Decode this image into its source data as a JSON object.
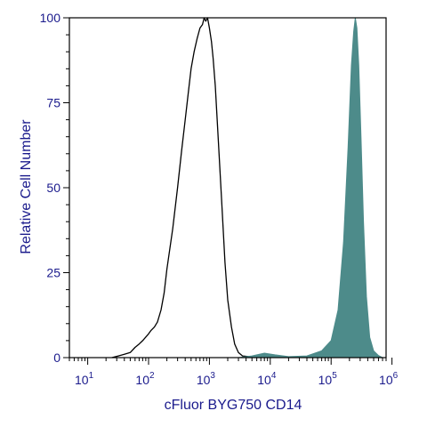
{
  "chart_data": {
    "type": "area",
    "xlabel": "cFluor BYG750 CD14",
    "ylabel": "Relative Cell Number",
    "x_scale": "log",
    "xlim": [
      5,
      800000
    ],
    "ylim": [
      0,
      100
    ],
    "x_ticks": [
      {
        "base": "10",
        "exp": "1",
        "value": 10
      },
      {
        "base": "10",
        "exp": "2",
        "value": 100
      },
      {
        "base": "10",
        "exp": "3",
        "value": 1000
      },
      {
        "base": "10",
        "exp": "4",
        "value": 10000
      },
      {
        "base": "10",
        "exp": "5",
        "value": 100000
      },
      {
        "base": "10",
        "exp": "6",
        "value": 1000000
      }
    ],
    "y_ticks": [
      0,
      25,
      50,
      75,
      100
    ],
    "grid": false,
    "legend": "none",
    "series": [
      {
        "style": "outline",
        "color": "#000000",
        "points": [
          [
            25,
            0
          ],
          [
            32,
            0.5
          ],
          [
            40,
            1
          ],
          [
            50,
            1.5
          ],
          [
            60,
            3
          ],
          [
            70,
            4
          ],
          [
            80,
            5
          ],
          [
            100,
            7
          ],
          [
            110,
            8
          ],
          [
            125,
            9
          ],
          [
            140,
            10.5
          ],
          [
            160,
            14
          ],
          [
            180,
            19
          ],
          [
            200,
            26
          ],
          [
            250,
            38
          ],
          [
            300,
            50
          ],
          [
            350,
            61
          ],
          [
            400,
            70
          ],
          [
            450,
            78
          ],
          [
            500,
            85
          ],
          [
            560,
            90
          ],
          [
            630,
            94
          ],
          [
            700,
            97
          ],
          [
            770,
            98
          ],
          [
            820,
            100
          ],
          [
            870,
            99
          ],
          [
            930,
            100
          ],
          [
            1000,
            97
          ],
          [
            1080,
            93
          ],
          [
            1150,
            88
          ],
          [
            1250,
            80
          ],
          [
            1400,
            64
          ],
          [
            1600,
            45
          ],
          [
            1800,
            28
          ],
          [
            2000,
            17
          ],
          [
            2300,
            9
          ],
          [
            2600,
            4
          ],
          [
            3000,
            1.5
          ],
          [
            3500,
            0.5
          ],
          [
            4500,
            0.3
          ],
          [
            6000,
            0
          ]
        ]
      },
      {
        "style": "filled",
        "color": "#4d8b8a",
        "points": [
          [
            3000,
            0
          ],
          [
            5000,
            0.5
          ],
          [
            8000,
            1.3
          ],
          [
            12000,
            0.8
          ],
          [
            20000,
            0.3
          ],
          [
            40000,
            0.5
          ],
          [
            70000,
            2
          ],
          [
            100000,
            5
          ],
          [
            130000,
            14
          ],
          [
            160000,
            34
          ],
          [
            190000,
            62
          ],
          [
            215000,
            86
          ],
          [
            235000,
            96
          ],
          [
            250000,
            100
          ],
          [
            265000,
            97
          ],
          [
            285000,
            86
          ],
          [
            310000,
            65
          ],
          [
            340000,
            40
          ],
          [
            380000,
            18
          ],
          [
            430000,
            6
          ],
          [
            500000,
            2
          ],
          [
            600000,
            0.6
          ],
          [
            700000,
            0
          ]
        ]
      }
    ]
  }
}
